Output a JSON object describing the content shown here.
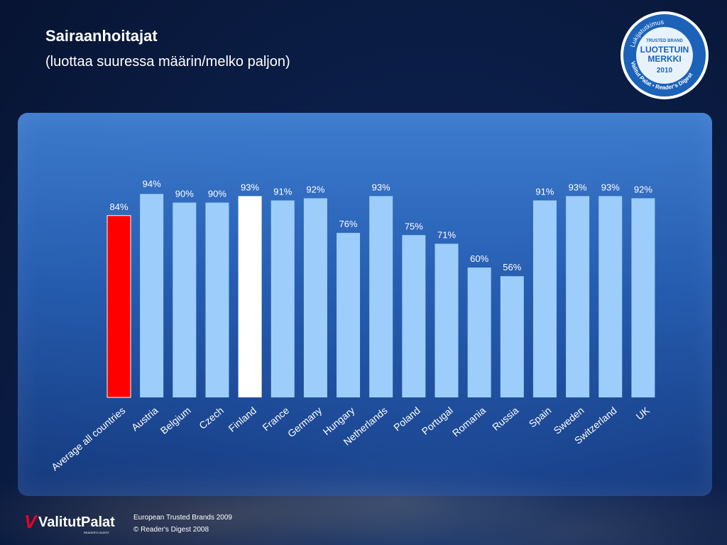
{
  "title": "Sairaanhoitajat",
  "subtitle": "(luottaa suuressa määrin/melko paljon)",
  "badge": {
    "arc_top": "Lukijatutkimus",
    "trusted": "TRUSTED BRAND",
    "line1": "LUOTETUIN",
    "line2": "MERKKI",
    "year": "2010",
    "arc_bottom": "Valitut Palat • Reader's Digest"
  },
  "footer": {
    "logo_text": "ValitutPalat",
    "logo_sub": "READER'S DIGEST",
    "line1": "European Trusted Brands 2009",
    "line2": "© Reader's Digest 2008"
  },
  "colors": {
    "bar_default": "#9dcdfb",
    "bar_average": "#ff0000",
    "bar_highlight": "#ffffff"
  },
  "chart_data": {
    "type": "bar",
    "categories": [
      "Average all countries",
      "Austria",
      "Belgium",
      "Czech",
      "Finland",
      "France",
      "Germany",
      "Hungary",
      "Netherlands",
      "Poland",
      "Portugal",
      "Romania",
      "Russia",
      "Spain",
      "Sweden",
      "Switzerland",
      "UK"
    ],
    "values": [
      84,
      94,
      90,
      90,
      93,
      91,
      92,
      76,
      93,
      75,
      71,
      60,
      56,
      91,
      93,
      93,
      92
    ],
    "labels": [
      "84%",
      "94%",
      "90%",
      "90%",
      "93%",
      "91%",
      "92%",
      "76%",
      "93%",
      "75%",
      "71%",
      "60%",
      "56%",
      "91%",
      "93%",
      "93%",
      "92%"
    ],
    "highlight_index": 4,
    "average_index": 0,
    "unit": "%",
    "grid": false,
    "legend": "none"
  }
}
